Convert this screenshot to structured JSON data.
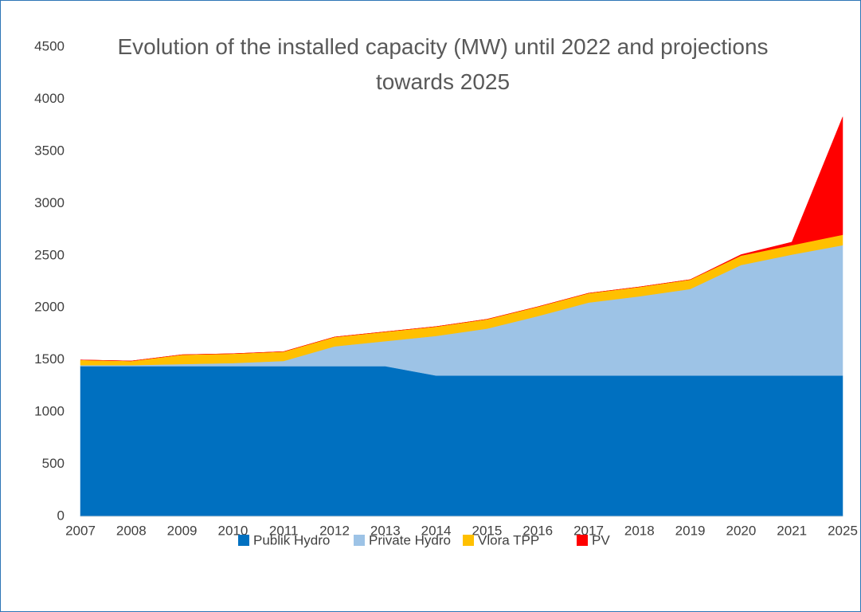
{
  "chart_data": {
    "type": "stacked_area",
    "title": "Evolution of the installed capacity (MW) until 2022 and projections towards 2025",
    "categories": [
      "2007",
      "2008",
      "2009",
      "2010",
      "2011",
      "2012",
      "2013",
      "2014",
      "2015",
      "2016",
      "2017",
      "2018",
      "2019",
      "2020",
      "2021",
      "2025"
    ],
    "series": [
      {
        "name": "Publik Hydro",
        "color": "#0070c0",
        "values": [
          1440,
          1440,
          1440,
          1440,
          1440,
          1440,
          1440,
          1350,
          1350,
          1350,
          1350,
          1350,
          1350,
          1350,
          1350,
          1350
        ]
      },
      {
        "name": "Private Hydro",
        "color": "#9dc3e6",
        "values": [
          10,
          10,
          20,
          30,
          50,
          190,
          240,
          380,
          450,
          570,
          700,
          760,
          830,
          1060,
          1160,
          1250
        ]
      },
      {
        "name": "Vlora TPP",
        "color": "#ffc000",
        "values": [
          50,
          40,
          90,
          90,
          90,
          90,
          90,
          90,
          90,
          90,
          90,
          90,
          90,
          90,
          90,
          100
        ]
      },
      {
        "name": "PV",
        "color": "#ff0000",
        "values": [
          0,
          0,
          0,
          0,
          0,
          0,
          0,
          0,
          0,
          0,
          0,
          0,
          0,
          10,
          30,
          1130
        ]
      }
    ],
    "ylim": [
      0,
      4500
    ],
    "yticks": [
      0,
      500,
      1000,
      1500,
      2000,
      2500,
      3000,
      3500,
      4000,
      4500
    ],
    "legend": "bottom"
  }
}
